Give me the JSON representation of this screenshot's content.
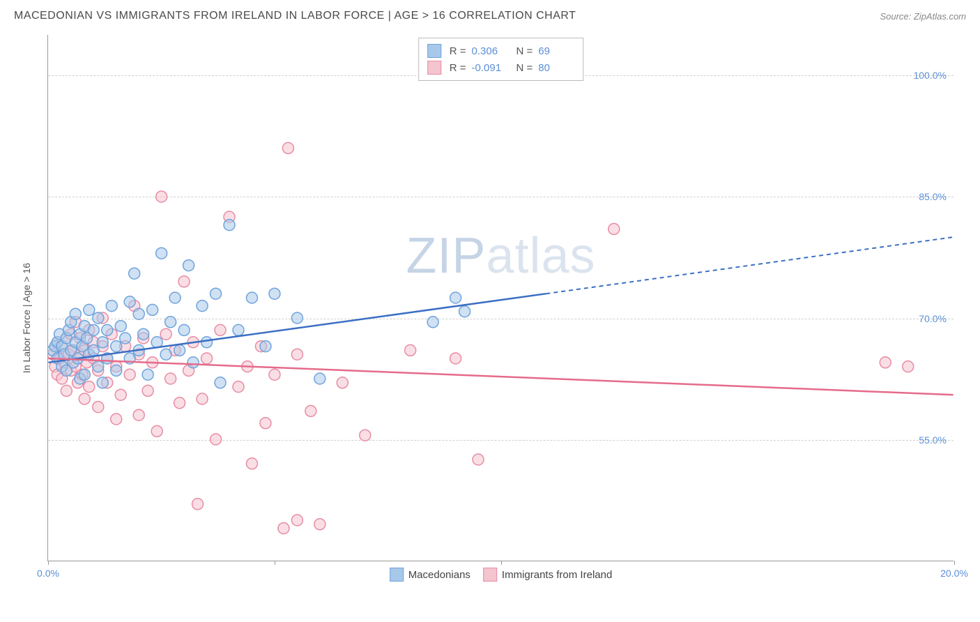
{
  "header": {
    "title": "MACEDONIAN VS IMMIGRANTS FROM IRELAND IN LABOR FORCE | AGE > 16 CORRELATION CHART",
    "source": "Source: ZipAtlas.com"
  },
  "chart": {
    "type": "scatter",
    "y_axis_label": "In Labor Force | Age > 16",
    "xlim": [
      0,
      20
    ],
    "ylim": [
      40,
      105
    ],
    "x_ticks": [
      0,
      5,
      10,
      20
    ],
    "x_tick_labels": {
      "0": "0.0%",
      "20": "20.0%"
    },
    "y_ticks": [
      55,
      70,
      85,
      100
    ],
    "y_tick_labels": {
      "55": "55.0%",
      "70": "70.0%",
      "85": "85.0%",
      "100": "100.0%"
    },
    "grid_color": "#d0d0d0",
    "background_color": "#ffffff",
    "axis_color": "#999999",
    "watermark": "ZIPatlas",
    "series": [
      {
        "name": "Macedonians",
        "color_fill": "#a8c8ea",
        "color_stroke": "#6fa3db",
        "trend_color": "#3b6fc4",
        "R": "0.306",
        "N": "69",
        "trend": {
          "x1": 0,
          "y1": 64.5,
          "x2_solid": 11,
          "y2_solid": 73,
          "x2_dash": 20,
          "y2_dash": 80
        },
        "points": [
          [
            0.1,
            66
          ],
          [
            0.15,
            66.5
          ],
          [
            0.2,
            65
          ],
          [
            0.2,
            67
          ],
          [
            0.25,
            68
          ],
          [
            0.3,
            64
          ],
          [
            0.3,
            66.5
          ],
          [
            0.35,
            65.5
          ],
          [
            0.4,
            67.5
          ],
          [
            0.4,
            63.5
          ],
          [
            0.45,
            68.5
          ],
          [
            0.5,
            66
          ],
          [
            0.5,
            69.5
          ],
          [
            0.55,
            64.5
          ],
          [
            0.6,
            67
          ],
          [
            0.6,
            70.5
          ],
          [
            0.65,
            65
          ],
          [
            0.7,
            68
          ],
          [
            0.7,
            62.5
          ],
          [
            0.75,
            66.5
          ],
          [
            0.8,
            69
          ],
          [
            0.8,
            63
          ],
          [
            0.85,
            67.5
          ],
          [
            0.9,
            65.5
          ],
          [
            0.9,
            71
          ],
          [
            1.0,
            66
          ],
          [
            1.0,
            68.5
          ],
          [
            1.1,
            64
          ],
          [
            1.1,
            70
          ],
          [
            1.2,
            67
          ],
          [
            1.2,
            62
          ],
          [
            1.3,
            68.5
          ],
          [
            1.3,
            65
          ],
          [
            1.4,
            71.5
          ],
          [
            1.5,
            66.5
          ],
          [
            1.5,
            63.5
          ],
          [
            1.6,
            69
          ],
          [
            1.7,
            67.5
          ],
          [
            1.8,
            72
          ],
          [
            1.8,
            65
          ],
          [
            1.9,
            75.5
          ],
          [
            2.0,
            66
          ],
          [
            2.0,
            70.5
          ],
          [
            2.1,
            68
          ],
          [
            2.2,
            63
          ],
          [
            2.3,
            71
          ],
          [
            2.4,
            67
          ],
          [
            2.5,
            78
          ],
          [
            2.6,
            65.5
          ],
          [
            2.7,
            69.5
          ],
          [
            2.8,
            72.5
          ],
          [
            2.9,
            66
          ],
          [
            3.0,
            68.5
          ],
          [
            3.1,
            76.5
          ],
          [
            3.2,
            64.5
          ],
          [
            3.4,
            71.5
          ],
          [
            3.5,
            67
          ],
          [
            3.7,
            73
          ],
          [
            3.8,
            62
          ],
          [
            4.0,
            81.5
          ],
          [
            4.2,
            68.5
          ],
          [
            4.5,
            72.5
          ],
          [
            4.8,
            66.5
          ],
          [
            5.0,
            73
          ],
          [
            5.5,
            70
          ],
          [
            6.0,
            62.5
          ],
          [
            8.5,
            69.5
          ],
          [
            9.0,
            72.5
          ],
          [
            9.2,
            70.8
          ]
        ]
      },
      {
        "name": "Immigrants from Ireland",
        "color_fill": "#f4c4cf",
        "color_stroke": "#e88ba3",
        "trend_color": "#e56b8a",
        "R": "-0.091",
        "N": "80",
        "trend": {
          "x1": 0,
          "y1": 65,
          "x2_solid": 20,
          "y2_solid": 60.5,
          "x2_dash": 20,
          "y2_dash": 60.5
        },
        "points": [
          [
            0.1,
            65.5
          ],
          [
            0.15,
            64
          ],
          [
            0.2,
            67
          ],
          [
            0.2,
            63
          ],
          [
            0.25,
            65
          ],
          [
            0.3,
            66.5
          ],
          [
            0.3,
            62.5
          ],
          [
            0.35,
            64.5
          ],
          [
            0.4,
            67.5
          ],
          [
            0.4,
            61
          ],
          [
            0.45,
            65.5
          ],
          [
            0.5,
            63.5
          ],
          [
            0.5,
            68
          ],
          [
            0.55,
            66
          ],
          [
            0.6,
            64
          ],
          [
            0.6,
            69.5
          ],
          [
            0.65,
            62
          ],
          [
            0.7,
            65.5
          ],
          [
            0.7,
            67.5
          ],
          [
            0.75,
            63
          ],
          [
            0.8,
            66
          ],
          [
            0.8,
            60
          ],
          [
            0.85,
            64.5
          ],
          [
            0.9,
            68.5
          ],
          [
            0.9,
            61.5
          ],
          [
            1.0,
            65
          ],
          [
            1.0,
            67
          ],
          [
            1.1,
            59
          ],
          [
            1.1,
            63.5
          ],
          [
            1.2,
            66.5
          ],
          [
            1.2,
            70
          ],
          [
            1.3,
            62
          ],
          [
            1.3,
            65
          ],
          [
            1.4,
            68
          ],
          [
            1.5,
            57.5
          ],
          [
            1.5,
            64
          ],
          [
            1.6,
            60.5
          ],
          [
            1.7,
            66.5
          ],
          [
            1.8,
            63
          ],
          [
            1.9,
            71.5
          ],
          [
            2.0,
            58
          ],
          [
            2.0,
            65.5
          ],
          [
            2.1,
            67.5
          ],
          [
            2.2,
            61
          ],
          [
            2.3,
            64.5
          ],
          [
            2.4,
            56
          ],
          [
            2.5,
            85
          ],
          [
            2.6,
            68
          ],
          [
            2.7,
            62.5
          ],
          [
            2.8,
            66
          ],
          [
            2.9,
            59.5
          ],
          [
            3.0,
            74.5
          ],
          [
            3.1,
            63.5
          ],
          [
            3.2,
            67
          ],
          [
            3.3,
            47
          ],
          [
            3.4,
            60
          ],
          [
            3.5,
            65
          ],
          [
            3.7,
            55
          ],
          [
            3.8,
            68.5
          ],
          [
            4.0,
            82.5
          ],
          [
            4.2,
            61.5
          ],
          [
            4.4,
            64
          ],
          [
            4.5,
            52
          ],
          [
            4.7,
            66.5
          ],
          [
            4.8,
            57
          ],
          [
            5.0,
            63
          ],
          [
            5.2,
            44
          ],
          [
            5.3,
            91
          ],
          [
            5.5,
            65.5
          ],
          [
            5.5,
            45
          ],
          [
            5.8,
            58.5
          ],
          [
            6.0,
            44.5
          ],
          [
            6.5,
            62
          ],
          [
            7.0,
            55.5
          ],
          [
            8.0,
            66
          ],
          [
            9.0,
            65
          ],
          [
            9.5,
            52.5
          ],
          [
            12.5,
            81
          ],
          [
            18.5,
            64.5
          ],
          [
            19,
            64
          ]
        ]
      }
    ]
  }
}
